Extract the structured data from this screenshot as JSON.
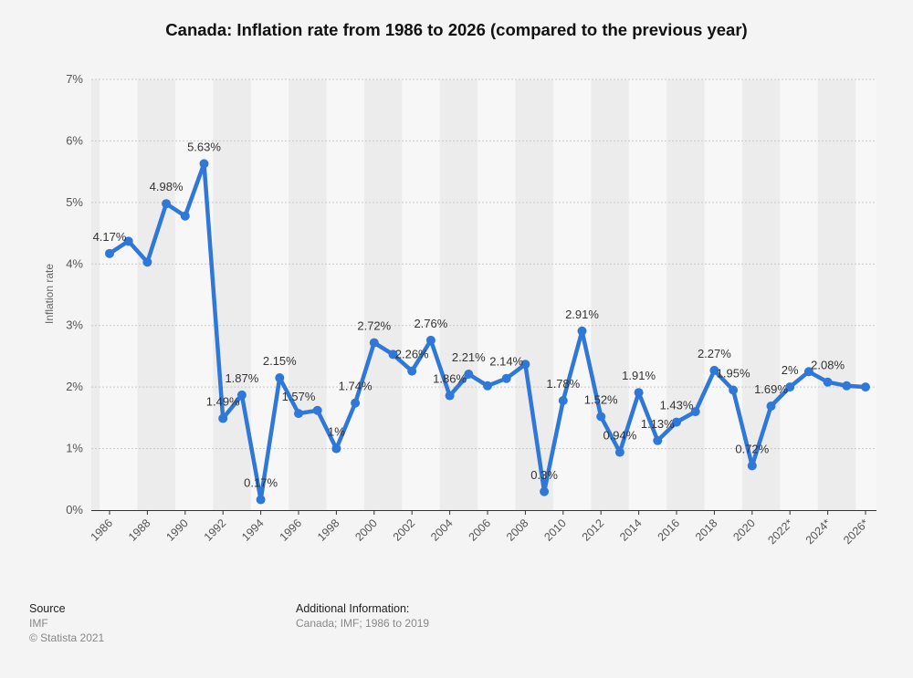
{
  "chart_data": {
    "type": "line",
    "title": "Canada: Inflation rate from 1986 to 2026 (compared to the previous year)",
    "xlabel": "",
    "ylabel": "Inflation rate",
    "ylim": [
      0,
      7
    ],
    "yticks": [
      "0%",
      "1%",
      "2%",
      "3%",
      "4%",
      "5%",
      "6%",
      "7%"
    ],
    "grid": true,
    "series_color": "#2f78d8",
    "x": [
      "1986",
      "1987",
      "1988",
      "1989",
      "1990",
      "1991",
      "1992",
      "1993",
      "1994",
      "1995",
      "1996",
      "1997",
      "1998",
      "1999",
      "2000",
      "2001",
      "2002",
      "2003",
      "2004",
      "2005",
      "2006",
      "2007",
      "2008",
      "2009",
      "2010",
      "2011",
      "2012",
      "2013",
      "2014",
      "2015",
      "2016",
      "2017",
      "2018",
      "2019",
      "2020",
      "2021*",
      "2022*",
      "2023*",
      "2024*",
      "2025*",
      "2026*"
    ],
    "xtick_labels": [
      "1986",
      "1988",
      "1990",
      "1992",
      "1994",
      "1996",
      "1998",
      "2000",
      "2002",
      "2004",
      "2006",
      "2008",
      "2010",
      "2012",
      "2014",
      "2016",
      "2018",
      "2020",
      "2022*",
      "2024*",
      "2026*"
    ],
    "series": [
      {
        "name": "Inflation rate",
        "values": [
          4.17,
          4.37,
          4.03,
          4.98,
          4.78,
          5.63,
          1.49,
          1.87,
          0.17,
          2.15,
          1.57,
          1.62,
          1.0,
          1.74,
          2.72,
          2.53,
          2.26,
          2.76,
          1.86,
          2.21,
          2.02,
          2.14,
          2.37,
          0.3,
          1.78,
          2.91,
          1.52,
          0.94,
          1.91,
          1.13,
          1.43,
          1.6,
          2.27,
          1.95,
          0.72,
          1.69,
          2.0,
          2.25,
          2.08,
          2.02,
          2.0
        ]
      }
    ],
    "data_labels": [
      {
        "index": 0,
        "text": "4.17%"
      },
      {
        "index": 3,
        "text": "4.98%"
      },
      {
        "index": 5,
        "text": "5.63%"
      },
      {
        "index": 6,
        "text": "1.49%"
      },
      {
        "index": 7,
        "text": "1.87%"
      },
      {
        "index": 8,
        "text": "0.17%"
      },
      {
        "index": 9,
        "text": "2.15%"
      },
      {
        "index": 10,
        "text": "1.57%"
      },
      {
        "index": 12,
        "text": "1%"
      },
      {
        "index": 13,
        "text": "1.74%"
      },
      {
        "index": 14,
        "text": "2.72%"
      },
      {
        "index": 16,
        "text": "2.26%"
      },
      {
        "index": 17,
        "text": "2.76%"
      },
      {
        "index": 18,
        "text": "1.86%"
      },
      {
        "index": 19,
        "text": "2.21%"
      },
      {
        "index": 21,
        "text": "2.14%"
      },
      {
        "index": 23,
        "text": "0.3%"
      },
      {
        "index": 24,
        "text": "1.78%"
      },
      {
        "index": 25,
        "text": "2.91%"
      },
      {
        "index": 26,
        "text": "1.52%"
      },
      {
        "index": 27,
        "text": "0.94%"
      },
      {
        "index": 28,
        "text": "1.91%"
      },
      {
        "index": 29,
        "text": "1.13%"
      },
      {
        "index": 30,
        "text": "1.43%"
      },
      {
        "index": 32,
        "text": "2.27%"
      },
      {
        "index": 33,
        "text": "1.95%"
      },
      {
        "index": 34,
        "text": "0.72%"
      },
      {
        "index": 35,
        "text": "1.69%"
      },
      {
        "index": 36,
        "text": "2%"
      },
      {
        "index": 38,
        "text": "2.08%"
      }
    ]
  },
  "footer": {
    "source_heading": "Source",
    "source_name": "IMF",
    "copyright": "© Statista 2021",
    "additional_heading": "Additional Information:",
    "additional_text": "Canada; IMF; 1986 to 2019"
  }
}
